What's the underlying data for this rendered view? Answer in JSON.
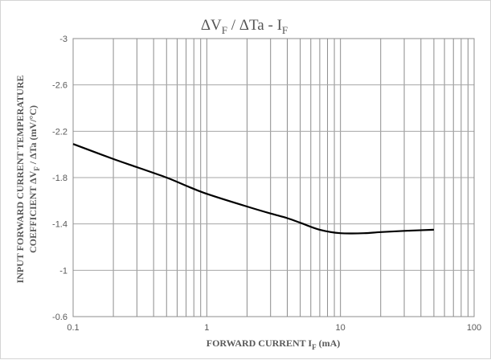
{
  "chart_data": {
    "type": "line",
    "title": {
      "main": "ΔV",
      "sub1": "F",
      "middle": " / ΔTa - I",
      "sub2": "F"
    },
    "xlabel": {
      "main": "FORWARD CURRENT I",
      "sub": "F",
      "tail": " (mA)"
    },
    "ylabel": {
      "line1": "INPUT FORWARD CURRENT TEMPERATURE",
      "line2_pre": "COEFFICIENT  ΔV",
      "line2_sub": "F",
      "line2_post": " / ΔTa  (mV/°C)"
    },
    "x_scale": "log",
    "xlim": [
      0.1,
      100
    ],
    "ylim": [
      -3,
      -0.6
    ],
    "y_inverted": true,
    "x_ticks": [
      {
        "value": 0.1,
        "label": "0.1"
      },
      {
        "value": 1,
        "label": "1"
      },
      {
        "value": 10,
        "label": "10"
      },
      {
        "value": 100,
        "label": "100"
      }
    ],
    "y_ticks": [
      {
        "value": -3,
        "label": "-3"
      },
      {
        "value": -2.6,
        "label": "-2.6"
      },
      {
        "value": -2.2,
        "label": "-2.2"
      },
      {
        "value": -1.8,
        "label": "-1.8"
      },
      {
        "value": -1.4,
        "label": "-1.4"
      },
      {
        "value": -1,
        "label": "-1"
      },
      {
        "value": -0.6,
        "label": "-0.6"
      }
    ],
    "grid": true,
    "series": [
      {
        "color": "#000000",
        "x": [
          0.1,
          0.2,
          0.3,
          0.5,
          0.7,
          1,
          2,
          3,
          4,
          5,
          7,
          10,
          15,
          20,
          30,
          50
        ],
        "y": [
          -2.09,
          -1.96,
          -1.89,
          -1.8,
          -1.73,
          -1.66,
          -1.55,
          -1.49,
          -1.45,
          -1.41,
          -1.35,
          -1.32,
          -1.32,
          -1.33,
          -1.34,
          -1.35
        ]
      }
    ]
  }
}
